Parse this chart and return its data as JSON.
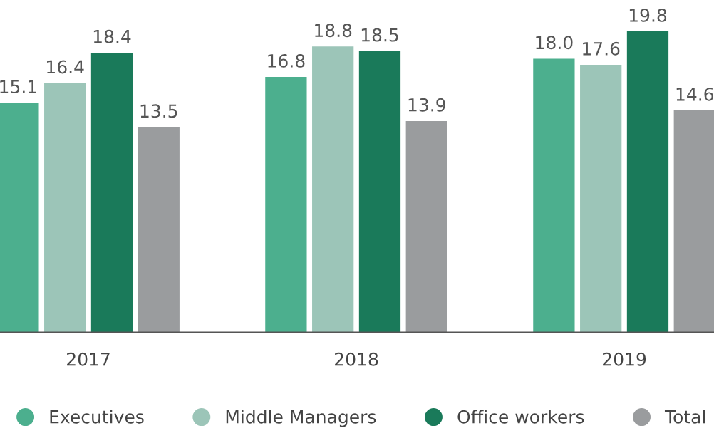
{
  "chart_data": {
    "type": "bar",
    "categories": [
      "2017",
      "2018",
      "2019"
    ],
    "series": [
      {
        "name": "Executives",
        "color": "#4caf8e",
        "values": [
          15.1,
          16.8,
          18.0
        ],
        "value_labels": [
          "15.1",
          "16.8",
          "18.0"
        ]
      },
      {
        "name": "Middle Managers",
        "color": "#9cc5b8",
        "values": [
          16.4,
          18.8,
          17.6
        ],
        "value_labels": [
          "16.4",
          "18.8",
          "17.6"
        ]
      },
      {
        "name": "Office workers",
        "color": "#1a7a5a",
        "values": [
          18.4,
          18.5,
          19.8
        ],
        "value_labels": [
          "18.4",
          "18.5",
          "19.8"
        ]
      },
      {
        "name": "Total",
        "color": "#9a9c9e",
        "values": [
          13.5,
          13.9,
          14.6
        ],
        "value_labels": [
          "13.5",
          "13.9",
          "14.6"
        ]
      }
    ],
    "legend": "bottom",
    "tick_labels": "x"
  }
}
